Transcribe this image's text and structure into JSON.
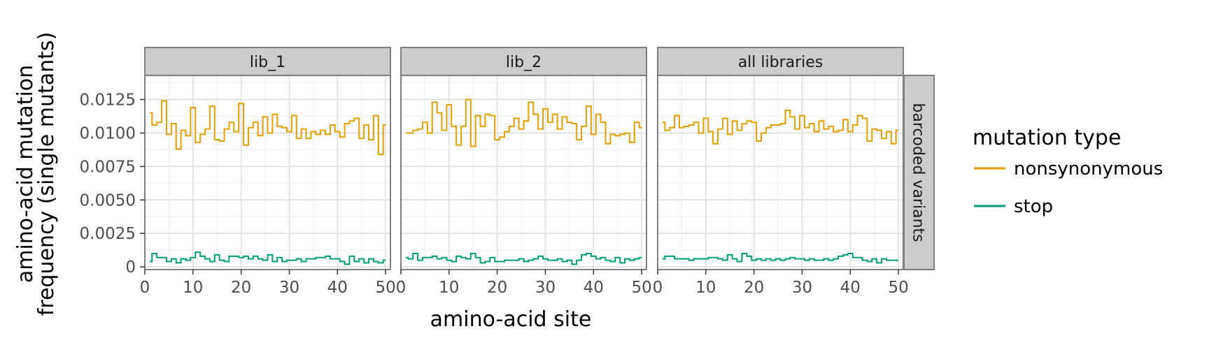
{
  "chart_data": {
    "type": "line",
    "xlabel": "amino-acid site",
    "ylabel_lines": [
      "amino-acid mutation",
      "frequency (single mutants)"
    ],
    "row_label": "barcoded variants",
    "legend": {
      "title": "mutation type",
      "placement": "right"
    },
    "xlim": [
      0,
      51
    ],
    "ylim": [
      -0.0002,
      0.0143
    ],
    "x_ticks": [
      0,
      10,
      20,
      30,
      40,
      50
    ],
    "y_ticks": [
      0,
      0.0025,
      0.005,
      0.0075,
      0.01,
      0.0125
    ],
    "y_tick_labels": [
      "0",
      "0.0025",
      "0.0050",
      "0.0075",
      "0.0100",
      "0.0125"
    ],
    "grid": true,
    "step_type": "mid",
    "colors": {
      "nonsynonymous": "#E69F00",
      "stop": "#009E73"
    },
    "panels": [
      {
        "name": "lib_1",
        "series": [
          {
            "name": "nonsynonymous",
            "values": [
              0.0115,
              0.0106,
              0.0108,
              0.0124,
              0.0099,
              0.0107,
              0.0088,
              0.0102,
              0.0098,
              0.0119,
              0.0093,
              0.0099,
              0.0103,
              0.012,
              0.0095,
              0.0094,
              0.0103,
              0.0108,
              0.0101,
              0.0122,
              0.0091,
              0.0104,
              0.0108,
              0.0098,
              0.0112,
              0.01,
              0.0114,
              0.0105,
              0.0104,
              0.0101,
              0.0113,
              0.0096,
              0.0103,
              0.0096,
              0.0101,
              0.0099,
              0.0102,
              0.0099,
              0.0106,
              0.0101,
              0.0097,
              0.0107,
              0.0109,
              0.0111,
              0.0096,
              0.0106,
              0.0095,
              0.0113,
              0.0084,
              0.0106
            ]
          },
          {
            "name": "stop",
            "values": [
              0.0004,
              0.001,
              0.0007,
              0.0007,
              0.0004,
              0.0006,
              0.0003,
              0.0006,
              0.0005,
              0.0007,
              0.0011,
              0.0008,
              0.0006,
              0.0004,
              0.0009,
              0.0005,
              0.0004,
              0.0008,
              0.0008,
              0.0007,
              0.0008,
              0.0006,
              0.0008,
              0.0006,
              0.0005,
              0.0009,
              0.0004,
              0.0007,
              0.0004,
              0.0005,
              0.0005,
              0.0006,
              0.0004,
              0.0006,
              0.0006,
              0.0007,
              0.0007,
              0.0008,
              0.0006,
              0.0006,
              0.0004,
              0.0002,
              0.0008,
              0.0004,
              0.0006,
              0.0003,
              0.0006,
              0.0004,
              0.0003,
              0.0005
            ]
          }
        ]
      },
      {
        "name": "lib_2",
        "series": [
          {
            "name": "nonsynonymous",
            "values": [
              0.01,
              0.01,
              0.0102,
              0.0103,
              0.0108,
              0.01,
              0.0123,
              0.0115,
              0.0102,
              0.0121,
              0.0105,
              0.0091,
              0.0105,
              0.0125,
              0.009,
              0.0113,
              0.0105,
              0.0114,
              0.0113,
              0.0095,
              0.0097,
              0.0101,
              0.0105,
              0.0111,
              0.0103,
              0.0109,
              0.0123,
              0.0114,
              0.0103,
              0.0118,
              0.0108,
              0.0114,
              0.0103,
              0.0112,
              0.0108,
              0.0107,
              0.0095,
              0.0105,
              0.012,
              0.0099,
              0.0114,
              0.0108,
              0.0092,
              0.0099,
              0.0098,
              0.0099,
              0.01,
              0.0093,
              0.0108,
              0.0104
            ]
          },
          {
            "name": "stop",
            "values": [
              0.0007,
              0.0006,
              0.001,
              0.0005,
              0.0007,
              0.0007,
              0.0008,
              0.0006,
              0.0007,
              0.0005,
              0.0004,
              0.0008,
              0.0007,
              0.0006,
              0.001,
              0.0007,
              0.0003,
              0.0004,
              0.0007,
              0.0004,
              0.0004,
              0.0005,
              0.0005,
              0.0005,
              0.0006,
              0.0004,
              0.0005,
              0.0006,
              0.0008,
              0.0006,
              0.0005,
              0.0005,
              0.0006,
              0.0004,
              0.0005,
              0.0002,
              0.0005,
              0.0009,
              0.001,
              0.0008,
              0.0006,
              0.0007,
              0.0005,
              0.0004,
              0.0007,
              0.0003,
              0.0006,
              0.0005,
              0.0006,
              0.0007
            ]
          }
        ]
      },
      {
        "name": "all libraries",
        "series": [
          {
            "name": "nonsynonymous",
            "values": [
              0.0108,
              0.0102,
              0.0104,
              0.0113,
              0.0104,
              0.0105,
              0.0106,
              0.0108,
              0.01,
              0.0111,
              0.0101,
              0.0092,
              0.0103,
              0.0111,
              0.0099,
              0.0109,
              0.0102,
              0.0107,
              0.0109,
              0.0108,
              0.0094,
              0.01,
              0.0104,
              0.0106,
              0.0106,
              0.0107,
              0.0117,
              0.0112,
              0.0103,
              0.0113,
              0.0104,
              0.0107,
              0.0101,
              0.0109,
              0.0103,
              0.0105,
              0.0101,
              0.0102,
              0.011,
              0.0101,
              0.0106,
              0.0113,
              0.0111,
              0.0094,
              0.0103,
              0.0102,
              0.0096,
              0.0101,
              0.0092,
              0.0102
            ]
          },
          {
            "name": "stop",
            "values": [
              0.0006,
              0.0008,
              0.0008,
              0.0006,
              0.0006,
              0.0006,
              0.0005,
              0.0006,
              0.0006,
              0.0006,
              0.0007,
              0.0007,
              0.0006,
              0.0005,
              0.0009,
              0.0006,
              0.0004,
              0.001,
              0.0008,
              0.0005,
              0.0006,
              0.0005,
              0.0006,
              0.0005,
              0.0006,
              0.0005,
              0.0006,
              0.0007,
              0.0006,
              0.0006,
              0.0005,
              0.0006,
              0.0005,
              0.0005,
              0.0006,
              0.0005,
              0.0006,
              0.0008,
              0.0009,
              0.001,
              0.0007,
              0.0007,
              0.0005,
              0.0004,
              0.0006,
              0.0003,
              0.0006,
              0.0005,
              0.0005,
              0.0005
            ]
          }
        ]
      }
    ]
  }
}
